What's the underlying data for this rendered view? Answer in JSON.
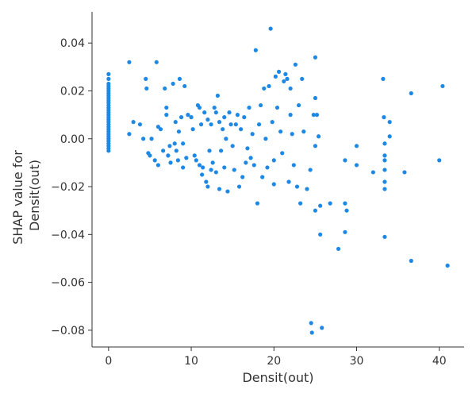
{
  "chart_data": {
    "type": "scatter",
    "title": "",
    "xlabel": "Densit(out)",
    "ylabel_lines": [
      "SHAP value for",
      "Densit(out)"
    ],
    "xlim": [
      -2,
      43
    ],
    "ylim": [
      -0.087,
      0.053
    ],
    "xticks": [
      0,
      10,
      20,
      30,
      40
    ],
    "xtick_labels": [
      "0",
      "10",
      "20",
      "30",
      "40"
    ],
    "yticks": [
      -0.08,
      -0.06,
      -0.04,
      -0.02,
      0.0,
      0.02,
      0.04
    ],
    "ytick_labels": [
      "−0.08",
      "−0.06",
      "−0.04",
      "−0.02",
      "0.00",
      "0.02",
      "0.04"
    ],
    "grid": false,
    "point_color": "#1e88e5",
    "points": [
      [
        0,
        0.027
      ],
      [
        0,
        0.025
      ],
      [
        0,
        0.023
      ],
      [
        0,
        0.022
      ],
      [
        0,
        0.021
      ],
      [
        0,
        0.02
      ],
      [
        0,
        0.019
      ],
      [
        0,
        0.018
      ],
      [
        0,
        0.017
      ],
      [
        0,
        0.016
      ],
      [
        0,
        0.015
      ],
      [
        0,
        0.014
      ],
      [
        0,
        0.013
      ],
      [
        0,
        0.012
      ],
      [
        0,
        0.011
      ],
      [
        0,
        0.01
      ],
      [
        0,
        0.009
      ],
      [
        0,
        0.008
      ],
      [
        0,
        0.007
      ],
      [
        0,
        0.006
      ],
      [
        0,
        0.005
      ],
      [
        0,
        0.004
      ],
      [
        0,
        0.003
      ],
      [
        0,
        0.002
      ],
      [
        0,
        0.001
      ],
      [
        0,
        0.0
      ],
      [
        0,
        -0.001
      ],
      [
        0,
        -0.002
      ],
      [
        0,
        -0.003
      ],
      [
        0,
        -0.004
      ],
      [
        0,
        -0.005
      ],
      [
        2.5,
        0.032
      ],
      [
        2.5,
        0.002
      ],
      [
        3,
        0.007
      ],
      [
        3.8,
        0.006
      ],
      [
        4.2,
        0.0
      ],
      [
        4.5,
        0.025
      ],
      [
        4.6,
        0.021
      ],
      [
        4.8,
        -0.006
      ],
      [
        5,
        -0.007
      ],
      [
        5.2,
        0.0
      ],
      [
        5.6,
        -0.009
      ],
      [
        5.8,
        0.032
      ],
      [
        6,
        0.005
      ],
      [
        6,
        -0.011
      ],
      [
        6.3,
        0.004
      ],
      [
        6.6,
        -0.005
      ],
      [
        6.8,
        0.021
      ],
      [
        7,
        0.013
      ],
      [
        7,
        0.01
      ],
      [
        7.2,
        -0.007
      ],
      [
        7.4,
        -0.003
      ],
      [
        7.5,
        -0.01
      ],
      [
        7.8,
        0.023
      ],
      [
        8,
        -0.002
      ],
      [
        8.1,
        0.007
      ],
      [
        8.2,
        -0.005
      ],
      [
        8.4,
        -0.009
      ],
      [
        8.5,
        0.003
      ],
      [
        8.6,
        0.025
      ],
      [
        8.8,
        0.009
      ],
      [
        9,
        -0.002
      ],
      [
        9,
        -0.012
      ],
      [
        9.2,
        0.022
      ],
      [
        9.4,
        -0.008
      ],
      [
        9.6,
        0.01
      ],
      [
        10,
        0.009
      ],
      [
        10.2,
        0.004
      ],
      [
        10.4,
        -0.007
      ],
      [
        10.6,
        -0.009
      ],
      [
        10.8,
        0.014
      ],
      [
        11,
        0.013
      ],
      [
        11,
        -0.011
      ],
      [
        11.2,
        0.006
      ],
      [
        11.3,
        -0.015
      ],
      [
        11.4,
        -0.012
      ],
      [
        11.6,
        0.011
      ],
      [
        11.8,
        -0.018
      ],
      [
        12,
        -0.02
      ],
      [
        12,
        0.008
      ],
      [
        12.2,
        -0.005
      ],
      [
        12.4,
        0.006
      ],
      [
        12.4,
        -0.013
      ],
      [
        12.6,
        -0.01
      ],
      [
        12.8,
        0.013
      ],
      [
        13,
        0.011
      ],
      [
        13,
        -0.014
      ],
      [
        13.2,
        0.018
      ],
      [
        13.4,
        0.007
      ],
      [
        13.4,
        -0.021
      ],
      [
        13.6,
        -0.005
      ],
      [
        13.8,
        0.004
      ],
      [
        14,
        0.009
      ],
      [
        14,
        -0.012
      ],
      [
        14.2,
        0.0
      ],
      [
        14.4,
        -0.022
      ],
      [
        14.6,
        0.011
      ],
      [
        14.8,
        0.006
      ],
      [
        15,
        -0.003
      ],
      [
        15.2,
        -0.013
      ],
      [
        15.4,
        0.006
      ],
      [
        15.6,
        0.01
      ],
      [
        15.8,
        -0.02
      ],
      [
        16,
        0.004
      ],
      [
        16.2,
        -0.016
      ],
      [
        16.4,
        0.009
      ],
      [
        16.6,
        -0.01
      ],
      [
        16.8,
        -0.004
      ],
      [
        17,
        0.013
      ],
      [
        17.2,
        -0.008
      ],
      [
        17.4,
        0.002
      ],
      [
        17.6,
        -0.011
      ],
      [
        17.8,
        0.037
      ],
      [
        18,
        -0.027
      ],
      [
        18.2,
        0.006
      ],
      [
        18.4,
        0.014
      ],
      [
        18.6,
        -0.016
      ],
      [
        18.8,
        0.021
      ],
      [
        19,
        0.0
      ],
      [
        19.2,
        -0.012
      ],
      [
        19.4,
        0.022
      ],
      [
        19.6,
        0.046
      ],
      [
        19.8,
        0.007
      ],
      [
        20,
        -0.019
      ],
      [
        20,
        -0.009
      ],
      [
        20.2,
        0.026
      ],
      [
        20.4,
        0.013
      ],
      [
        20.6,
        0.028
      ],
      [
        20.8,
        0.003
      ],
      [
        21,
        -0.006
      ],
      [
        21.2,
        0.024
      ],
      [
        21.4,
        0.027
      ],
      [
        21.6,
        0.025
      ],
      [
        21.8,
        -0.018
      ],
      [
        22,
        0.021
      ],
      [
        22,
        0.01
      ],
      [
        22.2,
        0.002
      ],
      [
        22.4,
        -0.011
      ],
      [
        22.6,
        0.031
      ],
      [
        22.8,
        -0.02
      ],
      [
        23,
        0.014
      ],
      [
        23.2,
        -0.027
      ],
      [
        23.4,
        0.025
      ],
      [
        23.6,
        0.003
      ],
      [
        24,
        -0.021
      ],
      [
        24.4,
        -0.013
      ],
      [
        24.5,
        -0.077
      ],
      [
        24.6,
        -0.081
      ],
      [
        24.8,
        0.01
      ],
      [
        25,
        0.034
      ],
      [
        25,
        0.017
      ],
      [
        25,
        -0.003
      ],
      [
        25,
        -0.03
      ],
      [
        25.2,
        0.01
      ],
      [
        25.4,
        0.001
      ],
      [
        25.6,
        -0.04
      ],
      [
        25.6,
        -0.028
      ],
      [
        25.8,
        -0.079
      ],
      [
        26.8,
        -0.027
      ],
      [
        27.8,
        -0.046
      ],
      [
        28.6,
        -0.027
      ],
      [
        28.6,
        -0.039
      ],
      [
        28.8,
        -0.03
      ],
      [
        28.6,
        -0.009
      ],
      [
        30,
        -0.003
      ],
      [
        30,
        -0.011
      ],
      [
        32,
        -0.014
      ],
      [
        33.2,
        0.025
      ],
      [
        33.3,
        0.009
      ],
      [
        33.4,
        -0.002
      ],
      [
        33.4,
        -0.007
      ],
      [
        33.4,
        -0.009
      ],
      [
        33.4,
        -0.013
      ],
      [
        33.4,
        -0.018
      ],
      [
        33.4,
        -0.021
      ],
      [
        33.4,
        -0.041
      ],
      [
        34,
        0.007
      ],
      [
        34,
        0.001
      ],
      [
        35.8,
        -0.014
      ],
      [
        36.6,
        0.019
      ],
      [
        36.6,
        -0.051
      ],
      [
        40,
        -0.009
      ],
      [
        40.4,
        0.022
      ],
      [
        41,
        -0.053
      ]
    ]
  }
}
